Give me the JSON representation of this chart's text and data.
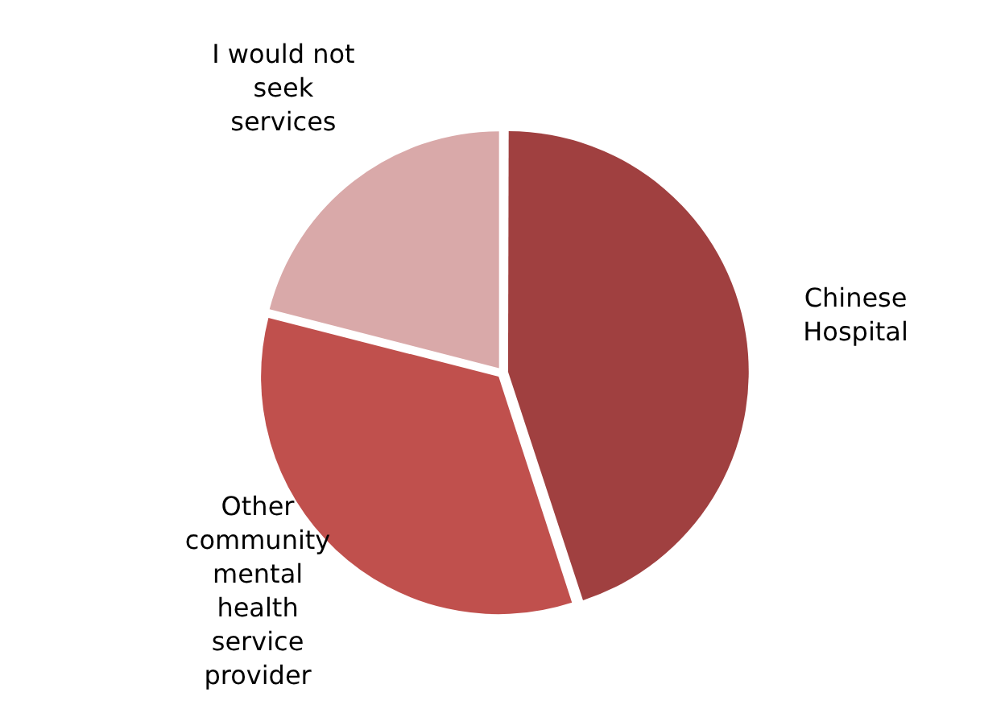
{
  "chart_data": {
    "type": "pie",
    "categories": [
      "Chinese Hospital",
      "Other community mental health service provider",
      "I would not seek services"
    ],
    "values": [
      45,
      34,
      21
    ],
    "colors": [
      "#a04040",
      "#c0504d",
      "#d9a9a9"
    ],
    "legend": false
  }
}
